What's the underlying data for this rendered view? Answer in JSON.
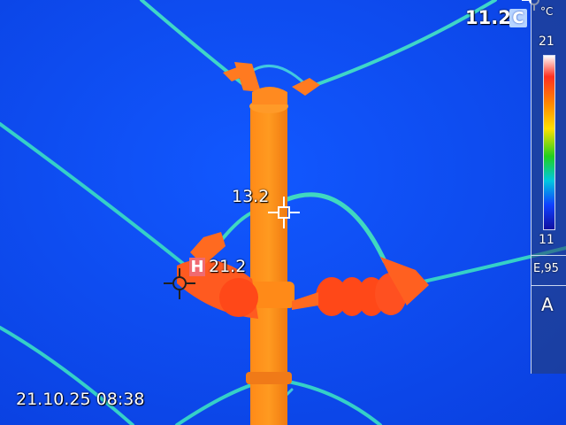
{
  "readouts": {
    "center_temp": "11.2",
    "center_unit_badge": "C",
    "spot_temp": "13.2",
    "hot_badge": "H",
    "hot_temp": "21.2",
    "datetime": "21.10.25 08:38"
  },
  "scale": {
    "unit": "°C",
    "max": "21",
    "min": "11",
    "emissivity": "E,95",
    "mode": "A"
  },
  "colors": {
    "background": "#0a48f0",
    "hot": "#ff8a10",
    "wire": "#30d0d0"
  }
}
